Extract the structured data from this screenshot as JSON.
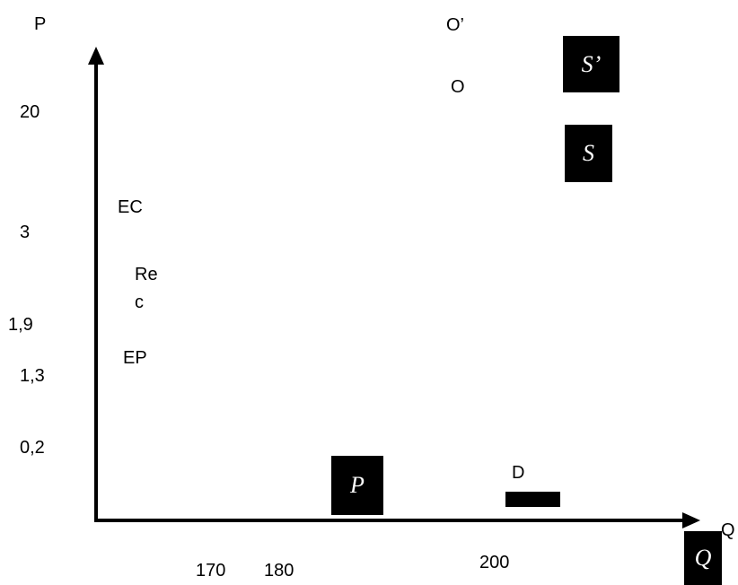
{
  "axes": {
    "y_label": "P",
    "x_label": "Q",
    "y_ticks": [
      "20",
      "3",
      "1,9",
      "1,3",
      "0,2"
    ],
    "x_ticks": [
      "170",
      "180",
      "200"
    ]
  },
  "labels": {
    "o_prime": "O’",
    "o": "O",
    "ec": "EC",
    "rec_line1": "Re",
    "rec_line2": "c",
    "ep": "EP",
    "d": "D"
  },
  "boxes": {
    "s_prime": "S’",
    "s": "S",
    "p": "P",
    "q": "Q"
  },
  "colors": {
    "ink": "#000000",
    "paper": "#ffffff"
  }
}
